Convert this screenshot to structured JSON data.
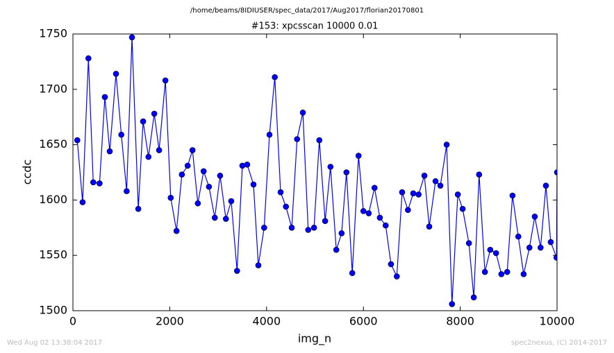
{
  "chart_data": {
    "type": "line",
    "suptitle": "/home/beams/8IDIUSER/spec_data/2017/Aug2017/florian20170801",
    "title": "#153: xpcsscan 10000 0.01",
    "x_label": "img_n",
    "y_label": "ccdc",
    "footer": {
      "left": "Wed Aug 02 13:38:04 2017",
      "right": "spec2nexus, (C) 2014-2017"
    },
    "x": [
      90,
      200,
      320,
      420,
      550,
      660,
      760,
      890,
      1000,
      1110,
      1220,
      1350,
      1450,
      1560,
      1680,
      1780,
      1910,
      2020,
      2140,
      2250,
      2370,
      2470,
      2580,
      2700,
      2810,
      2930,
      3040,
      3160,
      3270,
      3390,
      3500,
      3600,
      3730,
      3830,
      3950,
      4060,
      4170,
      4290,
      4400,
      4520,
      4630,
      4750,
      4860,
      4980,
      5090,
      5210,
      5320,
      5440,
      5550,
      5650,
      5770,
      5900,
      6000,
      6110,
      6230,
      6340,
      6460,
      6570,
      6690,
      6800,
      6920,
      7030,
      7140,
      7260,
      7360,
      7490,
      7590,
      7720,
      7830,
      7950,
      8050,
      8180,
      8280,
      8390,
      8510,
      8620,
      8740,
      8850,
      8970,
      9080,
      9200,
      9310,
      9430,
      9540,
      9660,
      9770,
      9870,
      9990,
      10000
    ],
    "series": [
      {
        "name": "ccdc",
        "color": "#0000ff",
        "values": [
          1654,
          1598,
          1728,
          1616,
          1615,
          1693,
          1644,
          1714,
          1659,
          1608,
          1747,
          1592,
          1671,
          1639,
          1678,
          1645,
          1708,
          1602,
          1572,
          1623,
          1631,
          1645,
          1597,
          1626,
          1612,
          1584,
          1622,
          1583,
          1599,
          1536,
          1631,
          1632,
          1614,
          1541,
          1575,
          1659,
          1711,
          1607,
          1594,
          1575,
          1655,
          1679,
          1573,
          1575,
          1654,
          1581,
          1630,
          1555,
          1570,
          1625,
          1534,
          1640,
          1590,
          1588,
          1611,
          1584,
          1577,
          1542,
          1531,
          1607,
          1591,
          1606,
          1605,
          1622,
          1576,
          1617,
          1613,
          1650,
          1506,
          1605,
          1592,
          1561,
          1512,
          1623,
          1535,
          1555,
          1552,
          1533,
          1535,
          1604,
          1567,
          1533,
          1557,
          1585,
          1557,
          1613,
          1562,
          1548,
          1625
        ]
      }
    ],
    "xlim": [
      0,
      10000
    ],
    "ylim": [
      1500,
      1750
    ],
    "xticks": [
      0,
      2000,
      4000,
      6000,
      8000,
      10000
    ],
    "yticks": [
      1500,
      1550,
      1600,
      1650,
      1700,
      1750
    ],
    "grid": false
  }
}
